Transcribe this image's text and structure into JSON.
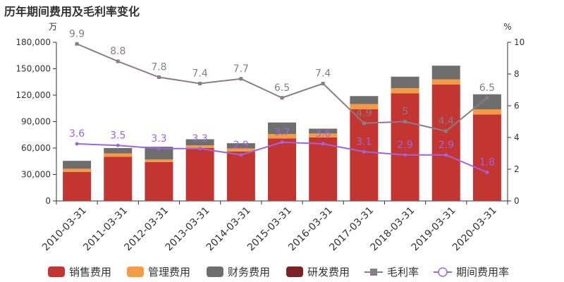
{
  "title": "历年期间费用及毛利率变化",
  "chart_data": {
    "type": "bar",
    "title": "历年期间费用及毛利率变化",
    "categories": [
      "2010-03-31",
      "2011-03-31",
      "2012-03-31",
      "2013-03-31",
      "2014-03-31",
      "2015-03-31",
      "2016-03-31",
      "2017-03-31",
      "2018-03-31",
      "2019-03-31",
      "2020-03-31"
    ],
    "left_axis": {
      "unit": "万",
      "ylim": [
        0,
        180000
      ],
      "ticks": [
        0,
        30000,
        60000,
        90000,
        120000,
        150000,
        180000
      ],
      "tick_labels": [
        "0",
        "30,000",
        "60,000",
        "90,000",
        "120,000",
        "150,000",
        "180,000"
      ]
    },
    "right_axis": {
      "unit": "%",
      "ylim": [
        0,
        10
      ],
      "ticks": [
        0,
        2,
        4,
        6,
        8,
        10
      ],
      "tick_labels": [
        "0",
        "2",
        "4",
        "6",
        "8",
        "10"
      ]
    },
    "stacked_series": [
      {
        "name": "销售费用",
        "color": "#c23531",
        "values": [
          33000,
          50000,
          44000,
          60000,
          56000,
          71000,
          72000,
          104000,
          122000,
          132000,
          98000
        ]
      },
      {
        "name": "管理费用",
        "color": "#f49b46",
        "values": [
          3500,
          4000,
          3000,
          3000,
          3500,
          5000,
          4500,
          6000,
          6000,
          6000,
          6000
        ]
      },
      {
        "name": "财务费用",
        "color": "#6e6e6e",
        "values": [
          9000,
          6000,
          14500,
          7000,
          6000,
          13000,
          5500,
          9000,
          13000,
          15500,
          17000
        ]
      },
      {
        "name": "研发费用",
        "color": "#7b2324",
        "values": [
          0,
          0,
          0,
          0,
          0,
          0,
          0,
          0,
          0,
          0,
          0
        ]
      }
    ],
    "line_series": [
      {
        "name": "毛利率",
        "color": "#8a7c88",
        "marker": "square",
        "values": [
          9.9,
          8.8,
          7.8,
          7.4,
          7.7,
          6.5,
          7.4,
          4.9,
          5,
          4.4,
          6.5
        ],
        "labels": [
          "9.9",
          "8.8",
          "7.8",
          "7.4",
          "7.7",
          "6.5",
          "7.4",
          "4.9",
          "5",
          "4.4",
          "6.5"
        ]
      },
      {
        "name": "期间费用率",
        "color": "#a064e0",
        "marker": "circle",
        "values": [
          3.6,
          3.5,
          3.3,
          3.3,
          2.9,
          3.7,
          3.6,
          3.1,
          2.9,
          2.9,
          1.8
        ],
        "labels": [
          "3.6",
          "3.5",
          "3.3",
          "3.3",
          "2.9",
          "3.7",
          "3.6",
          "3.1",
          "2.9",
          "2.9",
          "1.8"
        ]
      }
    ],
    "legend": [
      "销售费用",
      "管理费用",
      "财务费用",
      "研发费用",
      "毛利率",
      "期间费用率"
    ],
    "legend_placement": "bottom",
    "grid": false
  }
}
